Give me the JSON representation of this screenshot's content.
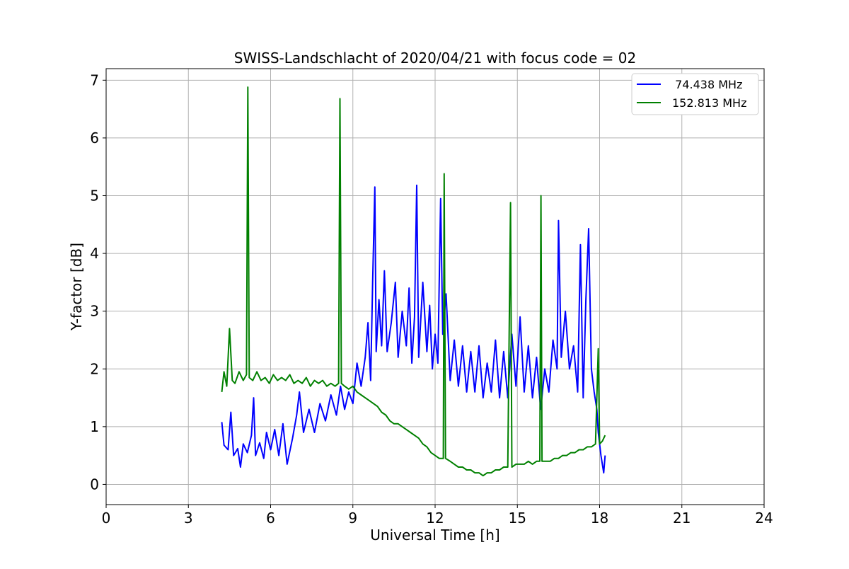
{
  "chart_data": {
    "type": "line",
    "title": "SWISS-Landschlacht of 2020/04/21 with focus code = 02",
    "xlabel": "Universal Time [h]",
    "ylabel": "Y-factor [dB]",
    "xlim": [
      0,
      24
    ],
    "ylim": [
      -0.35,
      7.2
    ],
    "xticks": [
      0,
      3,
      6,
      9,
      12,
      15,
      18,
      21,
      24
    ],
    "yticks": [
      0,
      1,
      2,
      3,
      4,
      5,
      6,
      7
    ],
    "grid": true,
    "legend_position": "top-right",
    "series": [
      {
        "name": "74.438 MHz",
        "legend_label": "  74.438 MHz",
        "color": "#0000ff",
        "points": [
          [
            4.22,
            1.08
          ],
          [
            4.3,
            0.68
          ],
          [
            4.45,
            0.6
          ],
          [
            4.55,
            1.25
          ],
          [
            4.65,
            0.5
          ],
          [
            4.8,
            0.62
          ],
          [
            4.9,
            0.3
          ],
          [
            5.0,
            0.7
          ],
          [
            5.15,
            0.55
          ],
          [
            5.3,
            0.85
          ],
          [
            5.38,
            1.5
          ],
          [
            5.45,
            0.5
          ],
          [
            5.6,
            0.72
          ],
          [
            5.75,
            0.45
          ],
          [
            5.85,
            0.9
          ],
          [
            6.0,
            0.6
          ],
          [
            6.15,
            0.95
          ],
          [
            6.3,
            0.5
          ],
          [
            6.45,
            1.05
          ],
          [
            6.6,
            0.35
          ],
          [
            6.8,
            0.8
          ],
          [
            6.95,
            1.2
          ],
          [
            7.05,
            1.6
          ],
          [
            7.2,
            0.9
          ],
          [
            7.4,
            1.3
          ],
          [
            7.6,
            0.9
          ],
          [
            7.8,
            1.4
          ],
          [
            8.0,
            1.1
          ],
          [
            8.2,
            1.55
          ],
          [
            8.4,
            1.2
          ],
          [
            8.55,
            1.7
          ],
          [
            8.7,
            1.3
          ],
          [
            8.85,
            1.6
          ],
          [
            9.0,
            1.4
          ],
          [
            9.15,
            2.1
          ],
          [
            9.3,
            1.7
          ],
          [
            9.45,
            2.2
          ],
          [
            9.55,
            2.8
          ],
          [
            9.65,
            1.8
          ],
          [
            9.72,
            3.5
          ],
          [
            9.8,
            5.15
          ],
          [
            9.85,
            2.3
          ],
          [
            9.95,
            3.2
          ],
          [
            10.05,
            2.4
          ],
          [
            10.15,
            3.7
          ],
          [
            10.25,
            2.3
          ],
          [
            10.4,
            2.8
          ],
          [
            10.55,
            3.5
          ],
          [
            10.65,
            2.2
          ],
          [
            10.8,
            3.0
          ],
          [
            10.95,
            2.4
          ],
          [
            11.05,
            3.4
          ],
          [
            11.15,
            2.1
          ],
          [
            11.25,
            2.9
          ],
          [
            11.33,
            5.18
          ],
          [
            11.4,
            2.2
          ],
          [
            11.55,
            3.5
          ],
          [
            11.7,
            2.3
          ],
          [
            11.8,
            3.1
          ],
          [
            11.9,
            2.0
          ],
          [
            12.0,
            2.6
          ],
          [
            12.1,
            2.1
          ],
          [
            12.2,
            4.95
          ],
          [
            12.28,
            2.6
          ],
          [
            12.4,
            3.3
          ],
          [
            12.55,
            1.8
          ],
          [
            12.7,
            2.5
          ],
          [
            12.85,
            1.7
          ],
          [
            13.0,
            2.4
          ],
          [
            13.15,
            1.6
          ],
          [
            13.3,
            2.3
          ],
          [
            13.45,
            1.6
          ],
          [
            13.6,
            2.4
          ],
          [
            13.75,
            1.5
          ],
          [
            13.9,
            2.1
          ],
          [
            14.05,
            1.6
          ],
          [
            14.2,
            2.5
          ],
          [
            14.35,
            1.5
          ],
          [
            14.5,
            2.3
          ],
          [
            14.65,
            1.5
          ],
          [
            14.8,
            2.6
          ],
          [
            14.95,
            1.7
          ],
          [
            15.1,
            2.9
          ],
          [
            15.25,
            1.6
          ],
          [
            15.4,
            2.4
          ],
          [
            15.55,
            1.5
          ],
          [
            15.7,
            2.2
          ],
          [
            15.85,
            1.3
          ],
          [
            16.0,
            2.0
          ],
          [
            16.15,
            1.6
          ],
          [
            16.3,
            2.5
          ],
          [
            16.45,
            2.0
          ],
          [
            16.5,
            4.57
          ],
          [
            16.6,
            2.2
          ],
          [
            16.75,
            3.0
          ],
          [
            16.9,
            2.0
          ],
          [
            17.05,
            2.4
          ],
          [
            17.2,
            1.6
          ],
          [
            17.3,
            4.15
          ],
          [
            17.4,
            1.5
          ],
          [
            17.5,
            3.2
          ],
          [
            17.6,
            4.43
          ],
          [
            17.7,
            2.0
          ],
          [
            17.8,
            1.6
          ],
          [
            17.9,
            1.3
          ],
          [
            17.95,
            0.9
          ],
          [
            18.05,
            0.5
          ],
          [
            18.15,
            0.2
          ],
          [
            18.2,
            0.5
          ]
        ]
      },
      {
        "name": "152.813 MHz",
        "legend_label": "152.813 MHz",
        "color": "#008000",
        "points": [
          [
            4.22,
            1.6
          ],
          [
            4.3,
            1.95
          ],
          [
            4.4,
            1.7
          ],
          [
            4.5,
            2.7
          ],
          [
            4.6,
            1.8
          ],
          [
            4.7,
            1.75
          ],
          [
            4.85,
            1.95
          ],
          [
            5.0,
            1.8
          ],
          [
            5.12,
            1.9
          ],
          [
            5.17,
            6.88
          ],
          [
            5.22,
            1.85
          ],
          [
            5.35,
            1.8
          ],
          [
            5.5,
            1.95
          ],
          [
            5.65,
            1.8
          ],
          [
            5.8,
            1.85
          ],
          [
            5.95,
            1.75
          ],
          [
            6.1,
            1.9
          ],
          [
            6.25,
            1.8
          ],
          [
            6.4,
            1.85
          ],
          [
            6.55,
            1.8
          ],
          [
            6.7,
            1.9
          ],
          [
            6.85,
            1.75
          ],
          [
            7.0,
            1.8
          ],
          [
            7.15,
            1.75
          ],
          [
            7.3,
            1.85
          ],
          [
            7.45,
            1.7
          ],
          [
            7.6,
            1.8
          ],
          [
            7.75,
            1.75
          ],
          [
            7.9,
            1.8
          ],
          [
            8.05,
            1.7
          ],
          [
            8.2,
            1.75
          ],
          [
            8.35,
            1.7
          ],
          [
            8.48,
            1.75
          ],
          [
            8.53,
            6.68
          ],
          [
            8.58,
            1.75
          ],
          [
            8.7,
            1.7
          ],
          [
            8.85,
            1.65
          ],
          [
            9.0,
            1.7
          ],
          [
            9.15,
            1.6
          ],
          [
            9.3,
            1.55
          ],
          [
            9.45,
            1.5
          ],
          [
            9.6,
            1.45
          ],
          [
            9.75,
            1.4
          ],
          [
            9.9,
            1.35
          ],
          [
            10.05,
            1.25
          ],
          [
            10.2,
            1.2
          ],
          [
            10.35,
            1.1
          ],
          [
            10.5,
            1.05
          ],
          [
            10.65,
            1.05
          ],
          [
            10.8,
            1.0
          ],
          [
            10.95,
            0.95
          ],
          [
            11.1,
            0.9
          ],
          [
            11.25,
            0.85
          ],
          [
            11.4,
            0.8
          ],
          [
            11.55,
            0.7
          ],
          [
            11.7,
            0.65
          ],
          [
            11.85,
            0.55
          ],
          [
            12.0,
            0.5
          ],
          [
            12.15,
            0.45
          ],
          [
            12.3,
            0.45
          ],
          [
            12.33,
            5.38
          ],
          [
            12.38,
            0.45
          ],
          [
            12.55,
            0.4
          ],
          [
            12.7,
            0.35
          ],
          [
            12.85,
            0.3
          ],
          [
            13.0,
            0.3
          ],
          [
            13.15,
            0.25
          ],
          [
            13.3,
            0.25
          ],
          [
            13.45,
            0.2
          ],
          [
            13.6,
            0.2
          ],
          [
            13.75,
            0.15
          ],
          [
            13.9,
            0.2
          ],
          [
            14.05,
            0.2
          ],
          [
            14.2,
            0.25
          ],
          [
            14.35,
            0.25
          ],
          [
            14.5,
            0.3
          ],
          [
            14.65,
            0.3
          ],
          [
            14.75,
            4.88
          ],
          [
            14.8,
            0.3
          ],
          [
            14.95,
            0.35
          ],
          [
            15.1,
            0.35
          ],
          [
            15.25,
            0.35
          ],
          [
            15.4,
            0.4
          ],
          [
            15.55,
            0.35
          ],
          [
            15.7,
            0.4
          ],
          [
            15.82,
            0.4
          ],
          [
            15.86,
            5.0
          ],
          [
            15.9,
            0.4
          ],
          [
            16.05,
            0.4
          ],
          [
            16.2,
            0.4
          ],
          [
            16.35,
            0.45
          ],
          [
            16.5,
            0.45
          ],
          [
            16.65,
            0.5
          ],
          [
            16.8,
            0.5
          ],
          [
            16.95,
            0.55
          ],
          [
            17.1,
            0.55
          ],
          [
            17.25,
            0.6
          ],
          [
            17.4,
            0.6
          ],
          [
            17.55,
            0.65
          ],
          [
            17.7,
            0.65
          ],
          [
            17.85,
            0.7
          ],
          [
            17.95,
            2.35
          ],
          [
            18.0,
            0.7
          ],
          [
            18.1,
            0.75
          ],
          [
            18.2,
            0.85
          ]
        ]
      }
    ]
  }
}
